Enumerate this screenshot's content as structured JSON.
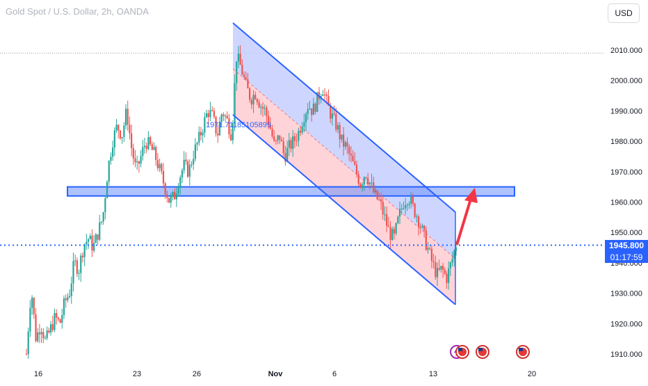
{
  "header": {
    "title": "Gold Spot / U.S. Dollar, 2h, OANDA",
    "currency": "USD"
  },
  "price_tag": {
    "value": "1945.800",
    "timer": "01:17:59"
  },
  "colors": {
    "up": "#26a69a",
    "down": "#ef5350",
    "accent": "#2962ff",
    "channel_upper_fill": "#c5cfff",
    "channel_lower_fill": "#ffcdd2",
    "zone_fill": "#6b8ff7",
    "arrow": "#f23645"
  },
  "icons": [
    "lightning-event-icon",
    "us-flag-event-icon",
    "us-flag-event-icon",
    "us-flag-event-icon"
  ],
  "chart_data": {
    "type": "candlestick",
    "title": "Gold Spot / U.S. Dollar, 2h, OANDA",
    "ylim": [
      1906,
      2018
    ],
    "y_ticks": [
      2010,
      2000,
      1990,
      1980,
      1970,
      1960,
      1950,
      1940,
      1930,
      1920,
      1910
    ],
    "y_tick_labels": [
      "2010.000",
      "2000.000",
      "1990.000",
      "1980.000",
      "1970.000",
      "1960.000",
      "1950.000",
      "1940.000",
      "1930.000",
      "1920.000",
      "1910.000"
    ],
    "x_tick_labels": [
      "16",
      "23",
      "26",
      "Nov",
      "6",
      "13",
      "20"
    ],
    "last_price": 1945.8,
    "dotted_high_line": 2009,
    "support_zone": {
      "top": 1965,
      "bottom": 1962
    },
    "channel_label": "1971.71185105899",
    "price_path": [
      [
        1910,
        1932,
        1915,
        1920,
        1914,
        1918,
        1922,
        1920,
        1927
      ],
      [
        1930,
        1940,
        1938,
        1946,
        1948,
        1945,
        1950,
        1955
      ],
      [
        1970,
        1980,
        1985,
        1982,
        1990,
        1978,
        1970,
        1975,
        1980
      ],
      [
        1978,
        1975,
        1970,
        1965,
        1960,
        1962,
        1968,
        1972,
        1970
      ],
      [
        1976,
        1980,
        1985,
        1990,
        1988,
        1982,
        1990,
        1987,
        1982
      ],
      [
        2008,
        2004,
        1998,
        1994,
        1996,
        1992,
        1990,
        1985,
        1978,
        1982,
        1975,
        1978
      ],
      [
        1980,
        1983,
        1988,
        1992,
        1990,
        1994,
        1998,
        1992,
        1988,
        1985,
        1980
      ],
      [
        1978,
        1974,
        1970,
        1966,
        1970,
        1966,
        1962,
        1960,
        1955,
        1950,
        1948,
        1955
      ],
      [
        1960,
        1962,
        1958,
        1955,
        1950,
        1945,
        1940,
        1936,
        1938,
        1935,
        1940,
        1946
      ]
    ]
  }
}
